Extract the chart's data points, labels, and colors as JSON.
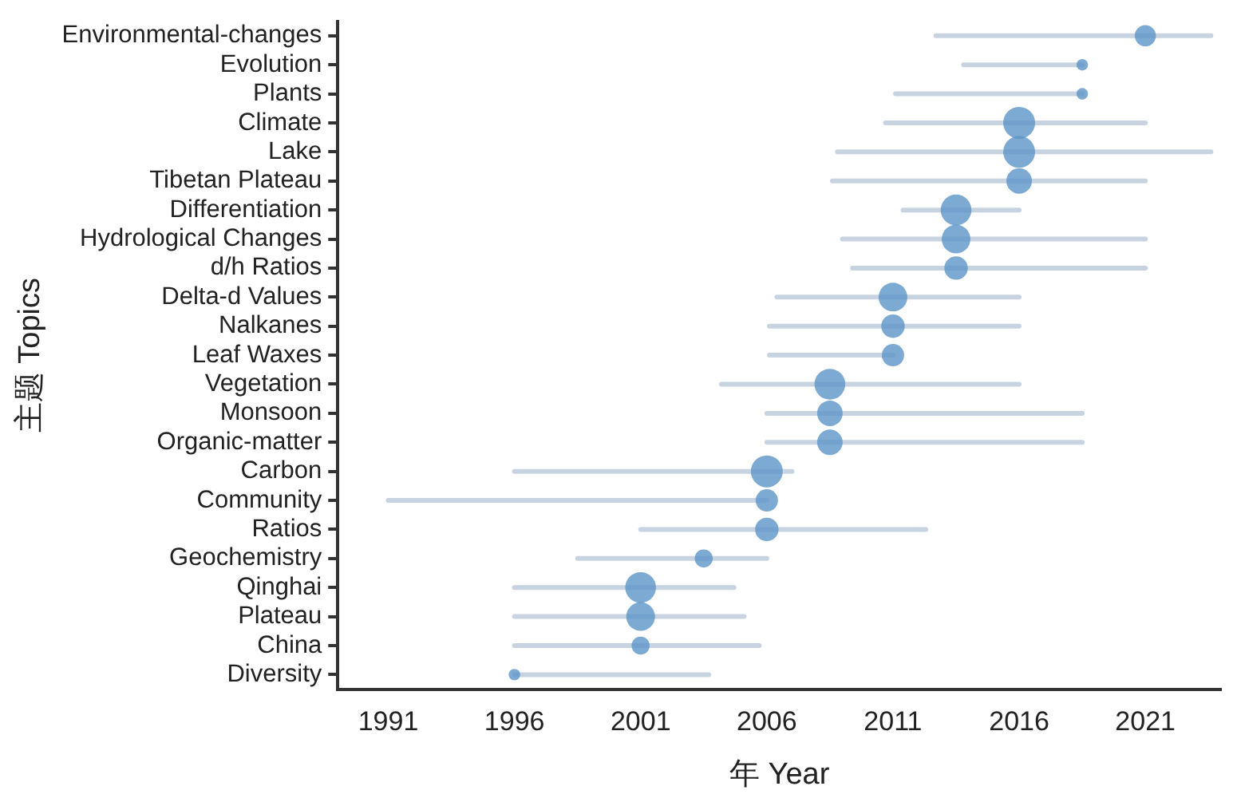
{
  "chart_data": {
    "type": "bubble",
    "orientation": "horizontal",
    "xlabel": "年 Year",
    "ylabel": "主题 Topics",
    "categories": [
      "Environmental-changes",
      "Evolution",
      "Plants",
      "Climate",
      "Lake",
      "Tibetan Plateau",
      "Differentiation",
      "Hydrological Changes",
      "d/h Ratios",
      "Delta-d Values",
      "Nalkanes",
      "Leaf Waxes",
      "Vegetation",
      "Monsoon",
      "Organic-matter",
      "Carbon",
      "Community",
      "Ratios",
      "Geochemistry",
      "Qinghai",
      "Plateau",
      "China",
      "Diversity"
    ],
    "values": [
      2021,
      2018.5,
      2018.5,
      2016,
      2016,
      2016,
      2013.5,
      2013.5,
      2013.5,
      2011,
      2011,
      2011,
      2008.5,
      2008.5,
      2008.5,
      2006,
      2006,
      2006,
      2003.5,
      2001,
      2001,
      2001,
      1996
    ],
    "sizes": [
      0.44,
      0.13,
      0.13,
      1,
      1,
      0.64,
      0.93,
      0.81,
      0.54,
      0.81,
      0.54,
      0.49,
      0.93,
      0.64,
      0.64,
      1,
      0.49,
      0.54,
      0.32,
      0.93,
      0.81,
      0.32,
      0.13
    ],
    "errors": [
      [
        2012.7,
        2023.6
      ],
      [
        2013.8,
        2018.5
      ],
      [
        2011.1,
        2018.5
      ],
      [
        2010.7,
        2021
      ],
      [
        2008.8,
        2023.6
      ],
      [
        2008.6,
        2021
      ],
      [
        2011.4,
        2016
      ],
      [
        2009,
        2021
      ],
      [
        2009.4,
        2021
      ],
      [
        2006.4,
        2016
      ],
      [
        2006.1,
        2016
      ],
      [
        2006.1,
        2011
      ],
      [
        2004.2,
        2016
      ],
      [
        2006,
        2018.5
      ],
      [
        2006,
        2018.5
      ],
      [
        1996,
        2007
      ],
      [
        1991,
        2006
      ],
      [
        2001,
        2012.3
      ],
      [
        1998.5,
        2006
      ],
      [
        1996,
        2004.7
      ],
      [
        1996,
        2005.1
      ],
      [
        1996,
        2005.7
      ],
      [
        1996,
        2003.7
      ]
    ],
    "color": "#5b95c7",
    "xlim": [
      1989,
      2024
    ],
    "xticks": [
      1991,
      1996,
      2001,
      2006,
      2011,
      2016,
      2021
    ],
    "grid": false,
    "legend": false
  }
}
